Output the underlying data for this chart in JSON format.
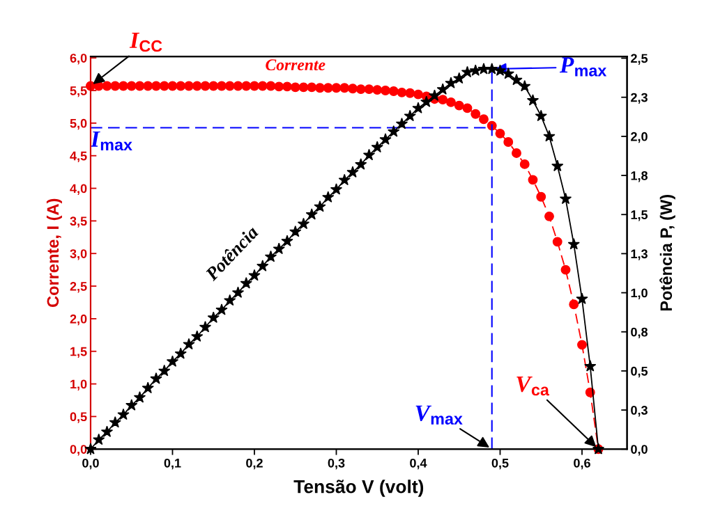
{
  "chart_data": {
    "type": "line",
    "xlabel": "Tensão V (volt)",
    "ylabel": "Corrente, I (A)",
    "y2label": "Potência P, (W)",
    "x": [
      0,
      0.01,
      0.02,
      0.03,
      0.04,
      0.05,
      0.06,
      0.07,
      0.08,
      0.09,
      0.1,
      0.11,
      0.12,
      0.13,
      0.14,
      0.15,
      0.16,
      0.17,
      0.18,
      0.19,
      0.2,
      0.21,
      0.22,
      0.23,
      0.24,
      0.25,
      0.26,
      0.27,
      0.28,
      0.29,
      0.3,
      0.31,
      0.32,
      0.33,
      0.34,
      0.35,
      0.36,
      0.37,
      0.38,
      0.39,
      0.4,
      0.41,
      0.42,
      0.43,
      0.44,
      0.45,
      0.46,
      0.47,
      0.48,
      0.49,
      0.5,
      0.51,
      0.52,
      0.53,
      0.54,
      0.55,
      0.56,
      0.57,
      0.58,
      0.59,
      0.6,
      0.61,
      0.62
    ],
    "series": [
      {
        "name": "Corrente",
        "color": "#ff0000",
        "marker": "circle",
        "line_style": "dashed",
        "values": [
          5.57,
          5.57,
          5.57,
          5.57,
          5.57,
          5.57,
          5.57,
          5.57,
          5.57,
          5.57,
          5.57,
          5.57,
          5.57,
          5.57,
          5.57,
          5.57,
          5.57,
          5.57,
          5.57,
          5.57,
          5.57,
          5.57,
          5.57,
          5.56,
          5.56,
          5.55,
          5.55,
          5.55,
          5.54,
          5.54,
          5.54,
          5.54,
          5.53,
          5.52,
          5.52,
          5.51,
          5.5,
          5.49,
          5.47,
          5.46,
          5.44,
          5.41,
          5.37,
          5.36,
          5.32,
          5.27,
          5.23,
          5.14,
          5.06,
          4.96,
          4.84,
          4.71,
          4.54,
          4.37,
          4.13,
          3.87,
          3.57,
          3.18,
          2.75,
          2.22,
          1.6,
          0.87,
          0
        ]
      },
      {
        "name": "Potência",
        "axis": "y2",
        "color": "#000000",
        "marker": "star",
        "line_style": "solid",
        "values": [
          0,
          0.06,
          0.11,
          0.17,
          0.22,
          0.28,
          0.33,
          0.39,
          0.45,
          0.5,
          0.56,
          0.61,
          0.67,
          0.72,
          0.78,
          0.84,
          0.89,
          0.95,
          1.0,
          1.06,
          1.11,
          1.17,
          1.23,
          1.28,
          1.33,
          1.39,
          1.44,
          1.5,
          1.55,
          1.61,
          1.66,
          1.72,
          1.77,
          1.82,
          1.88,
          1.93,
          1.98,
          2.03,
          2.08,
          2.13,
          2.18,
          2.22,
          2.26,
          2.3,
          2.34,
          2.37,
          2.41,
          2.42,
          2.43,
          2.43,
          2.42,
          2.4,
          2.36,
          2.32,
          2.23,
          2.13,
          2.0,
          1.81,
          1.6,
          1.31,
          0.96,
          0.53,
          0
        ]
      }
    ],
    "xlim": [
      0,
      0.655
    ],
    "xticks": [
      {
        "value": 0,
        "label": "0,0"
      },
      {
        "value": 0.1,
        "label": "0,1"
      },
      {
        "value": 0.2,
        "label": "0,2"
      },
      {
        "value": 0.3,
        "label": "0,3"
      },
      {
        "value": 0.4,
        "label": "0,4"
      },
      {
        "value": 0.5,
        "label": "0,5"
      },
      {
        "value": 0.6,
        "label": "0,6"
      }
    ],
    "ylim": [
      0,
      6.02
    ],
    "yticks": [
      {
        "value": 0,
        "label": "0,0"
      },
      {
        "value": 0.5,
        "label": "0,5"
      },
      {
        "value": 1,
        "label": "1,0"
      },
      {
        "value": 1.5,
        "label": "1,5"
      },
      {
        "value": 2,
        "label": "2,0"
      },
      {
        "value": 2.5,
        "label": "2,5"
      },
      {
        "value": 3,
        "label": "3,0"
      },
      {
        "value": 3.5,
        "label": "3,5"
      },
      {
        "value": 4,
        "label": "4,0"
      },
      {
        "value": 4.5,
        "label": "4,5"
      },
      {
        "value": 5,
        "label": "5,0"
      },
      {
        "value": 5.5,
        "label": "5,5"
      },
      {
        "value": 6,
        "label": "6,0"
      }
    ],
    "y2lim": [
      0,
      2.51
    ],
    "y2ticks": [
      {
        "value": 0,
        "label": "0,0"
      },
      {
        "value": 0.25,
        "label": "0,3"
      },
      {
        "value": 0.5,
        "label": "0,5"
      },
      {
        "value": 0.75,
        "label": "0,8"
      },
      {
        "value": 1,
        "label": "1,0"
      },
      {
        "value": 1.25,
        "label": "1,3"
      },
      {
        "value": 1.5,
        "label": "1,5"
      },
      {
        "value": 1.75,
        "label": "1,8"
      },
      {
        "value": 2,
        "label": "2,0"
      },
      {
        "value": 2.25,
        "label": "2,3"
      },
      {
        "value": 2.5,
        "label": "2,5"
      }
    ],
    "ref_lines": [
      {
        "axis": "x",
        "value": 0.49,
        "color": "#0000ff",
        "line_style": "dashed"
      },
      {
        "axis": "y",
        "value": 4.93,
        "color": "#0000ff",
        "line_style": "dashed"
      }
    ],
    "annotations": [
      {
        "text": "I$_{CC}$",
        "x": 0,
        "y": 5.57
      },
      {
        "text": "I$_{max}$",
        "x": 0,
        "y": 4.93
      },
      {
        "text": "P$_{max}$",
        "x": 0.49,
        "y": 5.83
      },
      {
        "text": "V$_{max}$",
        "x": 0.49,
        "y": 0
      },
      {
        "text": "V$_{ca}$",
        "x": 0.62,
        "y": 0
      }
    ],
    "grid": false
  }
}
